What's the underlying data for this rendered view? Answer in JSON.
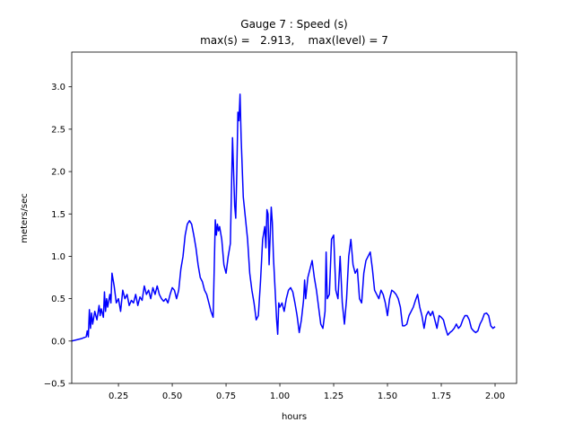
{
  "chart_data": {
    "type": "line",
    "title": [
      "Gauge 7 : Speed (s)",
      "max(s) =   2.913,    max(level) = 7"
    ],
    "xlabel": "hours",
    "ylabel": "meters/sec",
    "xlim": [
      0.033,
      2.1
    ],
    "ylim": [
      -0.5,
      3.41
    ],
    "xticks": [
      0.25,
      {
        "value": 0.5,
        "label": "0.50"
      },
      0.75,
      {
        "value": 1,
        "label": "1.00"
      },
      1.25,
      {
        "value": 1.5,
        "label": "1.50"
      },
      1.75,
      {
        "value": 2,
        "label": "2.00"
      }
    ],
    "yticks": [
      {
        "value": -0.5,
        "label": "−0.5"
      },
      {
        "value": 0,
        "label": "0.0"
      },
      0.5,
      {
        "value": 1,
        "label": "1.0"
      },
      1.5,
      {
        "value": 2,
        "label": "2.0"
      },
      2.5,
      {
        "value": 3,
        "label": "3.0"
      }
    ],
    "grid": false,
    "series": [
      {
        "color": "#0000ff",
        "x": [
          0.033,
          0.08,
          0.1,
          0.105,
          0.11,
          0.115,
          0.12,
          0.125,
          0.13,
          0.14,
          0.15,
          0.16,
          0.165,
          0.17,
          0.18,
          0.185,
          0.19,
          0.195,
          0.2,
          0.21,
          0.215,
          0.22,
          0.23,
          0.24,
          0.25,
          0.26,
          0.27,
          0.28,
          0.29,
          0.3,
          0.31,
          0.32,
          0.33,
          0.34,
          0.35,
          0.36,
          0.37,
          0.38,
          0.39,
          0.4,
          0.41,
          0.42,
          0.43,
          0.44,
          0.45,
          0.46,
          0.47,
          0.48,
          0.49,
          0.5,
          0.51,
          0.52,
          0.53,
          0.54,
          0.55,
          0.56,
          0.57,
          0.58,
          0.59,
          0.6,
          0.61,
          0.62,
          0.63,
          0.64,
          0.65,
          0.66,
          0.67,
          0.68,
          0.69,
          0.7,
          0.705,
          0.71,
          0.715,
          0.72,
          0.73,
          0.74,
          0.75,
          0.76,
          0.77,
          0.78,
          0.785,
          0.79,
          0.795,
          0.8,
          0.805,
          0.81,
          0.815,
          0.82,
          0.83,
          0.84,
          0.85,
          0.86,
          0.87,
          0.88,
          0.89,
          0.9,
          0.91,
          0.92,
          0.93,
          0.935,
          0.94,
          0.945,
          0.95,
          0.96,
          0.965,
          0.97,
          0.98,
          0.985,
          0.99,
          0.995,
          1.0,
          1.01,
          1.02,
          1.03,
          1.04,
          1.05,
          1.06,
          1.07,
          1.08,
          1.09,
          1.1,
          1.11,
          1.115,
          1.12,
          1.13,
          1.14,
          1.15,
          1.16,
          1.17,
          1.18,
          1.19,
          1.2,
          1.21,
          1.215,
          1.22,
          1.23,
          1.24,
          1.25,
          1.26,
          1.27,
          1.28,
          1.29,
          1.3,
          1.31,
          1.32,
          1.33,
          1.34,
          1.35,
          1.36,
          1.37,
          1.38,
          1.39,
          1.4,
          1.41,
          1.42,
          1.43,
          1.44,
          1.45,
          1.46,
          1.47,
          1.48,
          1.49,
          1.5,
          1.51,
          1.52,
          1.53,
          1.54,
          1.55,
          1.56,
          1.57,
          1.58,
          1.59,
          1.6,
          1.61,
          1.62,
          1.63,
          1.64,
          1.65,
          1.66,
          1.67,
          1.68,
          1.69,
          1.7,
          1.71,
          1.72,
          1.73,
          1.74,
          1.75,
          1.76,
          1.77,
          1.78,
          1.79,
          1.8,
          1.81,
          1.82,
          1.83,
          1.84,
          1.85,
          1.86,
          1.87,
          1.88,
          1.89,
          1.9,
          1.91,
          1.92,
          1.93,
          1.94,
          1.95,
          1.96,
          1.97,
          1.98,
          1.99,
          2.0
        ],
        "values": [
          0.0,
          0.03,
          0.05,
          0.12,
          0.05,
          0.37,
          0.15,
          0.33,
          0.2,
          0.35,
          0.25,
          0.42,
          0.3,
          0.38,
          0.28,
          0.58,
          0.35,
          0.5,
          0.4,
          0.55,
          0.45,
          0.8,
          0.65,
          0.45,
          0.5,
          0.35,
          0.6,
          0.5,
          0.55,
          0.42,
          0.48,
          0.45,
          0.55,
          0.42,
          0.52,
          0.48,
          0.65,
          0.55,
          0.6,
          0.5,
          0.63,
          0.55,
          0.65,
          0.55,
          0.5,
          0.47,
          0.5,
          0.45,
          0.55,
          0.63,
          0.6,
          0.5,
          0.6,
          0.85,
          1.0,
          1.25,
          1.38,
          1.42,
          1.38,
          1.25,
          1.1,
          0.9,
          0.75,
          0.7,
          0.6,
          0.55,
          0.45,
          0.35,
          0.28,
          1.43,
          1.25,
          1.38,
          1.3,
          1.35,
          1.2,
          0.9,
          0.8,
          1.0,
          1.15,
          2.4,
          2.0,
          1.6,
          1.45,
          2.0,
          2.7,
          2.6,
          2.913,
          2.4,
          1.7,
          1.45,
          1.2,
          0.8,
          0.6,
          0.45,
          0.25,
          0.3,
          0.7,
          1.2,
          1.35,
          1.1,
          1.55,
          1.5,
          0.9,
          1.58,
          1.4,
          1.0,
          0.5,
          0.25,
          0.08,
          0.45,
          0.4,
          0.45,
          0.35,
          0.5,
          0.6,
          0.63,
          0.58,
          0.45,
          0.3,
          0.1,
          0.25,
          0.48,
          0.72,
          0.5,
          0.75,
          0.85,
          0.95,
          0.75,
          0.6,
          0.4,
          0.2,
          0.15,
          0.35,
          1.05,
          0.5,
          0.55,
          1.2,
          1.25,
          0.6,
          0.5,
          1.0,
          0.45,
          0.2,
          0.5,
          1.0,
          1.2,
          0.9,
          0.8,
          0.85,
          0.5,
          0.45,
          0.8,
          0.95,
          1.0,
          1.05,
          0.85,
          0.6,
          0.55,
          0.5,
          0.6,
          0.55,
          0.45,
          0.3,
          0.5,
          0.6,
          0.58,
          0.55,
          0.5,
          0.4,
          0.18,
          0.18,
          0.2,
          0.3,
          0.35,
          0.4,
          0.48,
          0.55,
          0.4,
          0.3,
          0.15,
          0.3,
          0.35,
          0.3,
          0.35,
          0.25,
          0.15,
          0.3,
          0.28,
          0.25,
          0.15,
          0.07,
          0.1,
          0.12,
          0.15,
          0.2,
          0.15,
          0.18,
          0.25,
          0.3,
          0.3,
          0.25,
          0.15,
          0.12,
          0.1,
          0.12,
          0.2,
          0.25,
          0.32,
          0.33,
          0.3,
          0.18,
          0.15,
          0.17
        ]
      }
    ]
  }
}
